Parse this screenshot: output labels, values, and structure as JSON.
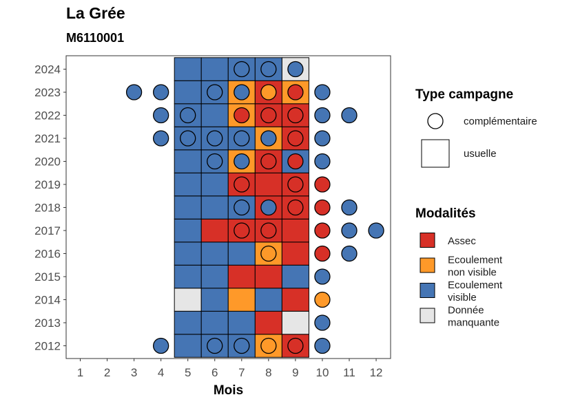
{
  "title": "La Grée",
  "subtitle": "M6110001",
  "colors": {
    "assec": "#d73027",
    "ecoulement_non_visible": "#fe9929",
    "ecoulement_visible": "#4575b4",
    "donnee_manquante": "#e6e6e6"
  },
  "chart_data": {
    "type": "heatmap",
    "xlabel": "Mois",
    "ylabel": "",
    "x_ticks": [
      "1",
      "2",
      "3",
      "4",
      "5",
      "6",
      "7",
      "8",
      "9",
      "10",
      "11",
      "12"
    ],
    "y_ticks": [
      "2012",
      "2013",
      "2014",
      "2015",
      "2016",
      "2017",
      "2018",
      "2019",
      "2020",
      "2021",
      "2022",
      "2023",
      "2024"
    ],
    "legend_campagne": {
      "title": "Type campagne",
      "items": [
        {
          "shape": "circle",
          "label": "complémentaire"
        },
        {
          "shape": "square",
          "label": "usuelle"
        }
      ]
    },
    "legend_modalites": {
      "title": "Modalités",
      "items": [
        {
          "key": "A",
          "lines": [
            "Assec"
          ]
        },
        {
          "key": "N",
          "lines": [
            "Ecoulement",
            "non visible"
          ]
        },
        {
          "key": "V",
          "lines": [
            "Ecoulement",
            "visible"
          ]
        },
        {
          "key": "D",
          "lines": [
            "Donnée",
            "manquante"
          ]
        }
      ]
    },
    "usuelle": {
      "months": [
        5,
        6,
        7,
        8,
        9
      ],
      "rows": {
        "2024": [
          "V",
          "V",
          "V",
          "V",
          "D"
        ],
        "2023": [
          "V",
          "V",
          "N",
          "A",
          "N"
        ],
        "2022": [
          "V",
          "V",
          "N",
          "A",
          "A"
        ],
        "2021": [
          "V",
          "V",
          "V",
          "N",
          "A"
        ],
        "2020": [
          "V",
          "V",
          "N",
          "A",
          "V"
        ],
        "2019": [
          "V",
          "V",
          "A",
          "A",
          "A"
        ],
        "2018": [
          "V",
          "V",
          "V",
          "A",
          "A"
        ],
        "2017": [
          "V",
          "A",
          "A",
          "A",
          "A"
        ],
        "2016": [
          "V",
          "V",
          "V",
          "N",
          "A"
        ],
        "2015": [
          "V",
          "V",
          "A",
          "A",
          "V"
        ],
        "2014": [
          "D",
          "V",
          "N",
          "V",
          "A"
        ],
        "2013": [
          "V",
          "V",
          "V",
          "A",
          "D"
        ],
        "2012": [
          "V",
          "V",
          "V",
          "N",
          "A"
        ]
      }
    },
    "complementaire": [
      {
        "year": "2024",
        "month": 7,
        "mod": "V"
      },
      {
        "year": "2024",
        "month": 8,
        "mod": "V"
      },
      {
        "year": "2024",
        "month": 9,
        "mod": "V"
      },
      {
        "year": "2023",
        "month": 3,
        "mod": "V"
      },
      {
        "year": "2023",
        "month": 4,
        "mod": "V"
      },
      {
        "year": "2023",
        "month": 6,
        "mod": "V"
      },
      {
        "year": "2023",
        "month": 7,
        "mod": "V"
      },
      {
        "year": "2023",
        "month": 8,
        "mod": "N"
      },
      {
        "year": "2023",
        "month": 9,
        "mod": "A"
      },
      {
        "year": "2023",
        "month": 10,
        "mod": "V"
      },
      {
        "year": "2022",
        "month": 4,
        "mod": "V"
      },
      {
        "year": "2022",
        "month": 5,
        "mod": "V"
      },
      {
        "year": "2022",
        "month": 7,
        "mod": "A"
      },
      {
        "year": "2022",
        "month": 8,
        "mod": "A"
      },
      {
        "year": "2022",
        "month": 9,
        "mod": "A"
      },
      {
        "year": "2022",
        "month": 10,
        "mod": "V"
      },
      {
        "year": "2022",
        "month": 11,
        "mod": "V"
      },
      {
        "year": "2021",
        "month": 4,
        "mod": "V"
      },
      {
        "year": "2021",
        "month": 5,
        "mod": "V"
      },
      {
        "year": "2021",
        "month": 6,
        "mod": "V"
      },
      {
        "year": "2021",
        "month": 7,
        "mod": "V"
      },
      {
        "year": "2021",
        "month": 8,
        "mod": "V"
      },
      {
        "year": "2021",
        "month": 9,
        "mod": "A"
      },
      {
        "year": "2021",
        "month": 10,
        "mod": "V"
      },
      {
        "year": "2020",
        "month": 6,
        "mod": "V"
      },
      {
        "year": "2020",
        "month": 7,
        "mod": "V"
      },
      {
        "year": "2020",
        "month": 8,
        "mod": "A"
      },
      {
        "year": "2020",
        "month": 9,
        "mod": "A"
      },
      {
        "year": "2020",
        "month": 10,
        "mod": "V"
      },
      {
        "year": "2019",
        "month": 7,
        "mod": "A"
      },
      {
        "year": "2019",
        "month": 9,
        "mod": "A"
      },
      {
        "year": "2019",
        "month": 10,
        "mod": "A"
      },
      {
        "year": "2018",
        "month": 7,
        "mod": "V"
      },
      {
        "year": "2018",
        "month": 8,
        "mod": "V"
      },
      {
        "year": "2018",
        "month": 9,
        "mod": "A"
      },
      {
        "year": "2018",
        "month": 10,
        "mod": "A"
      },
      {
        "year": "2018",
        "month": 11,
        "mod": "V"
      },
      {
        "year": "2017",
        "month": 7,
        "mod": "A"
      },
      {
        "year": "2017",
        "month": 8,
        "mod": "A"
      },
      {
        "year": "2017",
        "month": 10,
        "mod": "A"
      },
      {
        "year": "2017",
        "month": 11,
        "mod": "V"
      },
      {
        "year": "2017",
        "month": 12,
        "mod": "V"
      },
      {
        "year": "2016",
        "month": 8,
        "mod": "N"
      },
      {
        "year": "2016",
        "month": 10,
        "mod": "A"
      },
      {
        "year": "2016",
        "month": 11,
        "mod": "V"
      },
      {
        "year": "2015",
        "month": 10,
        "mod": "V"
      },
      {
        "year": "2014",
        "month": 10,
        "mod": "N"
      },
      {
        "year": "2013",
        "month": 10,
        "mod": "V"
      },
      {
        "year": "2012",
        "month": 4,
        "mod": "V"
      },
      {
        "year": "2012",
        "month": 6,
        "mod": "V"
      },
      {
        "year": "2012",
        "month": 7,
        "mod": "V"
      },
      {
        "year": "2012",
        "month": 8,
        "mod": "N"
      },
      {
        "year": "2012",
        "month": 9,
        "mod": "A"
      },
      {
        "year": "2012",
        "month": 10,
        "mod": "V"
      }
    ]
  }
}
